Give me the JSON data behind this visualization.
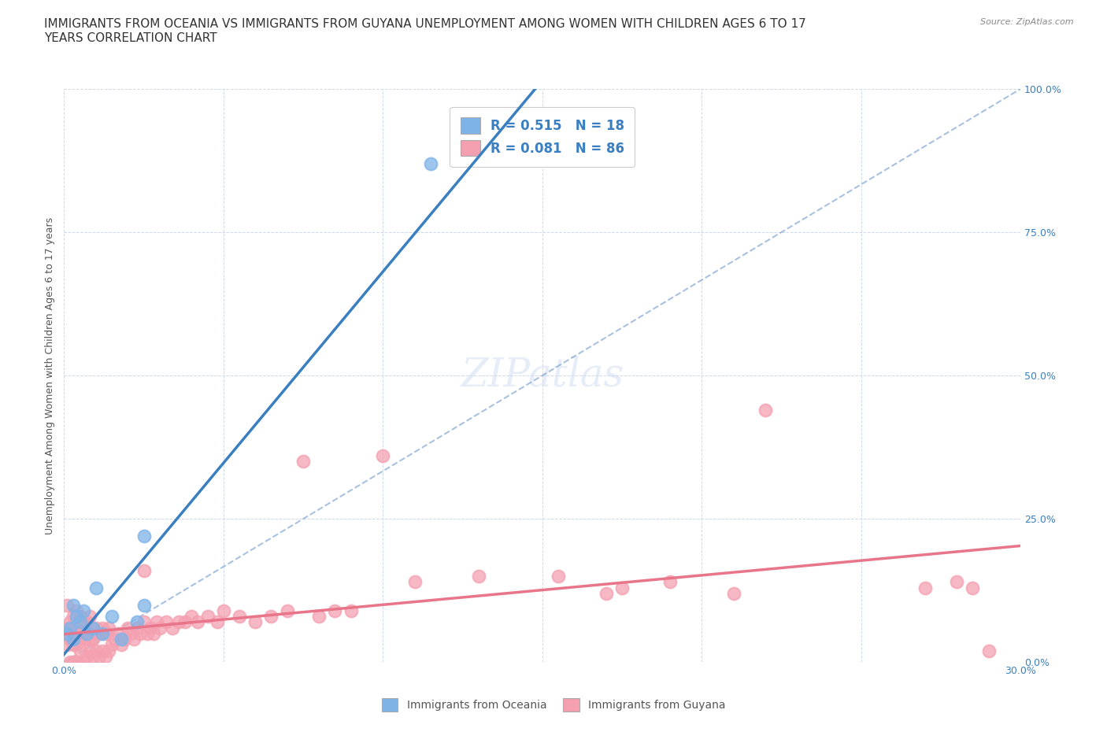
{
  "title": "IMMIGRANTS FROM OCEANIA VS IMMIGRANTS FROM GUYANA UNEMPLOYMENT AMONG WOMEN WITH CHILDREN AGES 6 TO 17\nYEARS CORRELATION CHART",
  "source": "Source: ZipAtlas.com",
  "ylabel": "Unemployment Among Women with Children Ages 6 to 17 years",
  "xlim": [
    0.0,
    0.3
  ],
  "ylim": [
    0.0,
    1.0
  ],
  "r_oceania": 0.515,
  "n_oceania": 18,
  "r_guyana": 0.081,
  "n_guyana": 86,
  "oceania_color": "#7eb3e8",
  "guyana_color": "#f4a0b0",
  "oceania_line_color": "#3a7fc1",
  "guyana_line_color": "#e8758a",
  "background_color": "#ffffff",
  "watermark": "ZIPatlas",
  "oceania_x": [
    0.001,
    0.002,
    0.003,
    0.003,
    0.004,
    0.005,
    0.006,
    0.007,
    0.009,
    0.01,
    0.012,
    0.015,
    0.018,
    0.023,
    0.025,
    0.025,
    0.115,
    0.14
  ],
  "oceania_y": [
    0.05,
    0.06,
    0.04,
    0.1,
    0.08,
    0.07,
    0.09,
    0.05,
    0.06,
    0.13,
    0.05,
    0.08,
    0.04,
    0.07,
    0.1,
    0.22,
    0.87,
    0.91
  ],
  "guyana_x": [
    0.001,
    0.001,
    0.001,
    0.002,
    0.002,
    0.002,
    0.003,
    0.003,
    0.003,
    0.003,
    0.004,
    0.004,
    0.004,
    0.004,
    0.005,
    0.005,
    0.005,
    0.006,
    0.006,
    0.006,
    0.007,
    0.007,
    0.007,
    0.008,
    0.008,
    0.008,
    0.009,
    0.009,
    0.01,
    0.01,
    0.011,
    0.011,
    0.012,
    0.012,
    0.013,
    0.013,
    0.014,
    0.014,
    0.015,
    0.016,
    0.017,
    0.018,
    0.019,
    0.02,
    0.021,
    0.022,
    0.023,
    0.024,
    0.025,
    0.026,
    0.027,
    0.028,
    0.029,
    0.03,
    0.032,
    0.034,
    0.036,
    0.038,
    0.04,
    0.042,
    0.045,
    0.048,
    0.05,
    0.055,
    0.06,
    0.065,
    0.07,
    0.075,
    0.08,
    0.085,
    0.09,
    0.1,
    0.11,
    0.13,
    0.155,
    0.17,
    0.175,
    0.19,
    0.21,
    0.22,
    0.27,
    0.28,
    0.285,
    0.29,
    0.025,
    0.008
  ],
  "guyana_y": [
    0.03,
    0.06,
    0.1,
    0.0,
    0.04,
    0.07,
    0.0,
    0.03,
    0.05,
    0.08,
    0.0,
    0.03,
    0.06,
    0.09,
    0.02,
    0.05,
    0.08,
    0.0,
    0.04,
    0.07,
    0.01,
    0.04,
    0.07,
    0.02,
    0.05,
    0.08,
    0.01,
    0.04,
    0.02,
    0.06,
    0.01,
    0.05,
    0.02,
    0.06,
    0.01,
    0.05,
    0.02,
    0.06,
    0.03,
    0.04,
    0.05,
    0.03,
    0.04,
    0.06,
    0.05,
    0.04,
    0.06,
    0.05,
    0.07,
    0.05,
    0.06,
    0.05,
    0.07,
    0.06,
    0.07,
    0.06,
    0.07,
    0.07,
    0.08,
    0.07,
    0.08,
    0.07,
    0.09,
    0.08,
    0.07,
    0.08,
    0.09,
    0.35,
    0.08,
    0.09,
    0.09,
    0.36,
    0.14,
    0.15,
    0.15,
    0.12,
    0.13,
    0.14,
    0.12,
    0.44,
    0.13,
    0.14,
    0.13,
    0.02,
    0.16,
    0.04
  ],
  "title_fontsize": 11,
  "axis_label_fontsize": 9,
  "tick_fontsize": 9,
  "legend_fontsize": 12,
  "watermark_fontsize": 36
}
